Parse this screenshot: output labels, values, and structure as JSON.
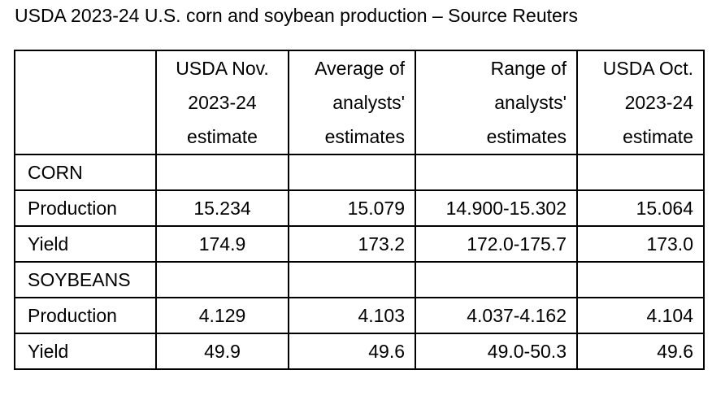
{
  "title": "USDA 2023-24 U.S. corn and soybean production – Source Reuters",
  "table": {
    "header": [
      [
        "",
        "USDA Nov.",
        "Average of",
        "Range of",
        "USDA Oct."
      ],
      [
        "",
        "2023-24",
        "analysts'",
        "analysts'",
        "2023-24"
      ],
      [
        "",
        "estimate",
        "estimates",
        "estimates",
        "estimate"
      ]
    ],
    "rows": [
      [
        "CORN",
        "",
        "",
        "",
        ""
      ],
      [
        "Production",
        "15.234",
        "15.079",
        "14.900-15.302",
        "15.064"
      ],
      [
        "Yield",
        "174.9",
        "173.2",
        "172.0-175.7",
        "173.0"
      ],
      [
        "SOYBEANS",
        "",
        "",
        "",
        ""
      ],
      [
        "Production",
        "4.129",
        "4.103",
        "4.037-4.162",
        "4.104"
      ],
      [
        "Yield",
        "49.9",
        "49.6",
        "49.0-50.3",
        "49.6"
      ]
    ]
  }
}
